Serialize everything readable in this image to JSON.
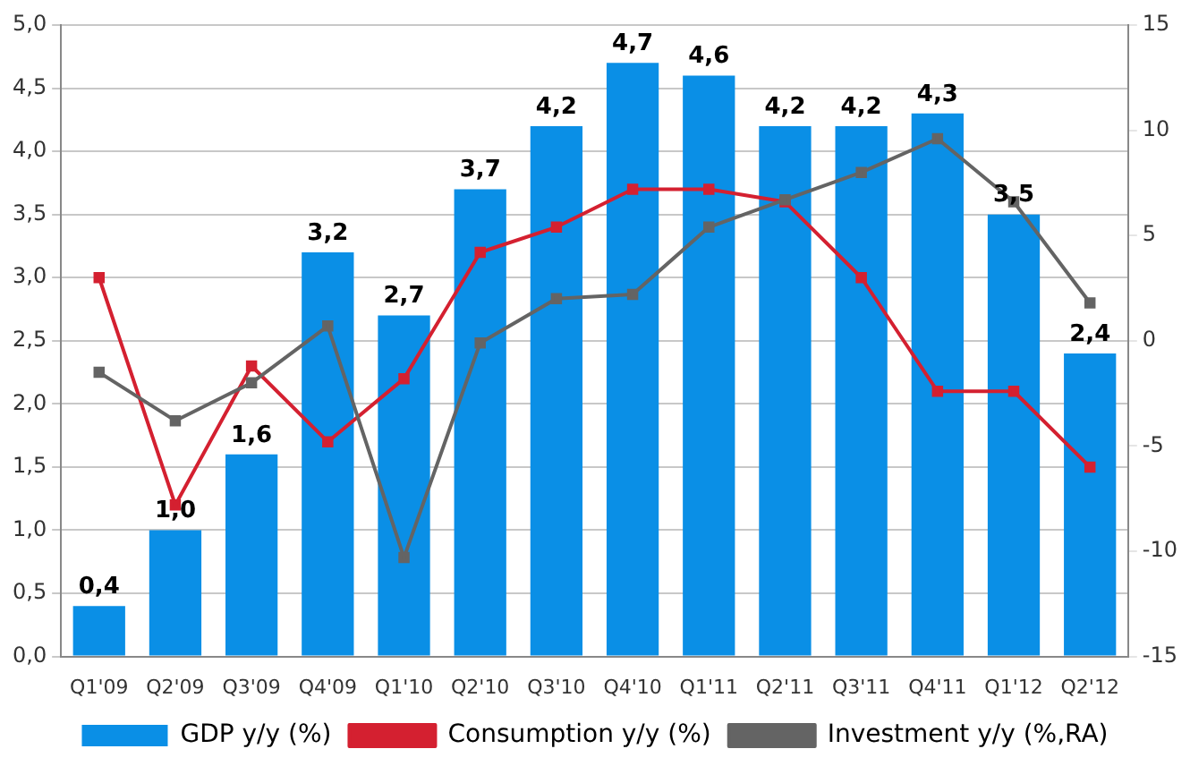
{
  "chart_data": {
    "type": "bar",
    "categories": [
      "Q1'09",
      "Q2'09",
      "Q3'09",
      "Q4'09",
      "Q1'10",
      "Q2'10",
      "Q3'10",
      "Q4'10",
      "Q1'11",
      "Q2'11",
      "Q3'11",
      "Q4'11",
      "Q1'12",
      "Q2'12"
    ],
    "series": [
      {
        "name": "GDP y/y (%)",
        "color": "#0a8fe6",
        "values": [
          0.4,
          1.0,
          1.6,
          3.2,
          2.7,
          3.7,
          4.2,
          4.7,
          4.6,
          4.2,
          4.2,
          4.3,
          3.5,
          2.4
        ],
        "value_labels": [
          "0,4",
          "1,0",
          "1,6",
          "3,2",
          "2,7",
          "3,7",
          "4,2",
          "4,7",
          "4,6",
          "4,2",
          "4,2",
          "4,3",
          "3,5",
          "2,4"
        ]
      },
      {
        "name": "Consumption y/y (%)",
        "type": "line",
        "color": "#d42030",
        "values": [
          3.0,
          1.2,
          2.3,
          1.7,
          2.2,
          3.2,
          3.4,
          3.7,
          3.7,
          3.6,
          3.0,
          2.1,
          2.1,
          1.5
        ]
      },
      {
        "name": "Investment y/y (%,RA)",
        "type": "line",
        "axis": "y2",
        "color": "#646464",
        "values": [
          -1.5,
          -3.8,
          -2.0,
          0.7,
          -10.3,
          -0.1,
          2.0,
          2.2,
          5.4,
          6.7,
          8.0,
          9.6,
          6.6,
          1.8
        ]
      }
    ],
    "ylim": [
      0,
      5
    ],
    "yticks": [
      {
        "value": 0,
        "label": "0,0"
      },
      {
        "value": 0.5,
        "label": "0,5"
      },
      {
        "value": 1,
        "label": "1,0"
      },
      {
        "value": 1.5,
        "label": "1,5"
      },
      {
        "value": 2,
        "label": "2,0"
      },
      {
        "value": 2.5,
        "label": "2,5"
      },
      {
        "value": 3,
        "label": "3,0"
      },
      {
        "value": 3.5,
        "label": "3,5"
      },
      {
        "value": 4,
        "label": "4,0"
      },
      {
        "value": 4.5,
        "label": "4,5"
      },
      {
        "value": 5,
        "label": "5,0"
      }
    ],
    "y2lim": [
      -15,
      15
    ],
    "y2ticks": [
      -15,
      -10,
      -5,
      0,
      5,
      10,
      15
    ],
    "grid": "y",
    "legend": "bottom",
    "marker": "square",
    "line_style": "solid"
  }
}
